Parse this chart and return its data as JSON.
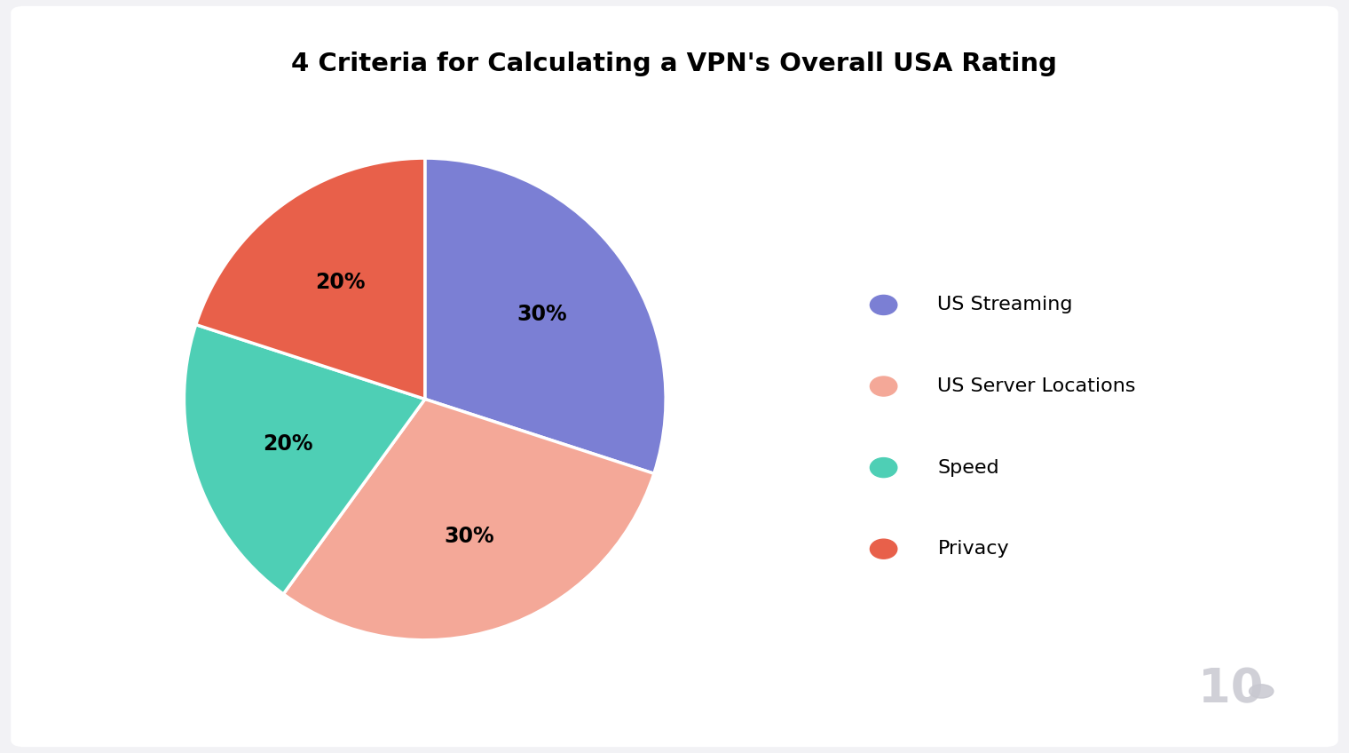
{
  "title": "4 Criteria for Calculating a VPN's Overall USA Rating",
  "slices": [
    {
      "label": "US Streaming",
      "value": 30,
      "color": "#7B7FD4",
      "pct_label": "30%"
    },
    {
      "label": "US Server Locations",
      "value": 30,
      "color": "#F4A898",
      "pct_label": "30%"
    },
    {
      "label": "Speed",
      "value": 20,
      "color": "#4ECFB5",
      "pct_label": "20%"
    },
    {
      "label": "Privacy",
      "value": 20,
      "color": "#E8604A",
      "pct_label": "20%"
    }
  ],
  "background_color": "#F2F2F5",
  "card_color": "#FFFFFF",
  "title_fontsize": 21,
  "label_fontsize": 17,
  "legend_fontsize": 16,
  "start_angle": 90,
  "watermark_text": "10",
  "watermark_color": "#C8C8D0",
  "edge_color": "#FFFFFF",
  "edge_linewidth": 2.5
}
